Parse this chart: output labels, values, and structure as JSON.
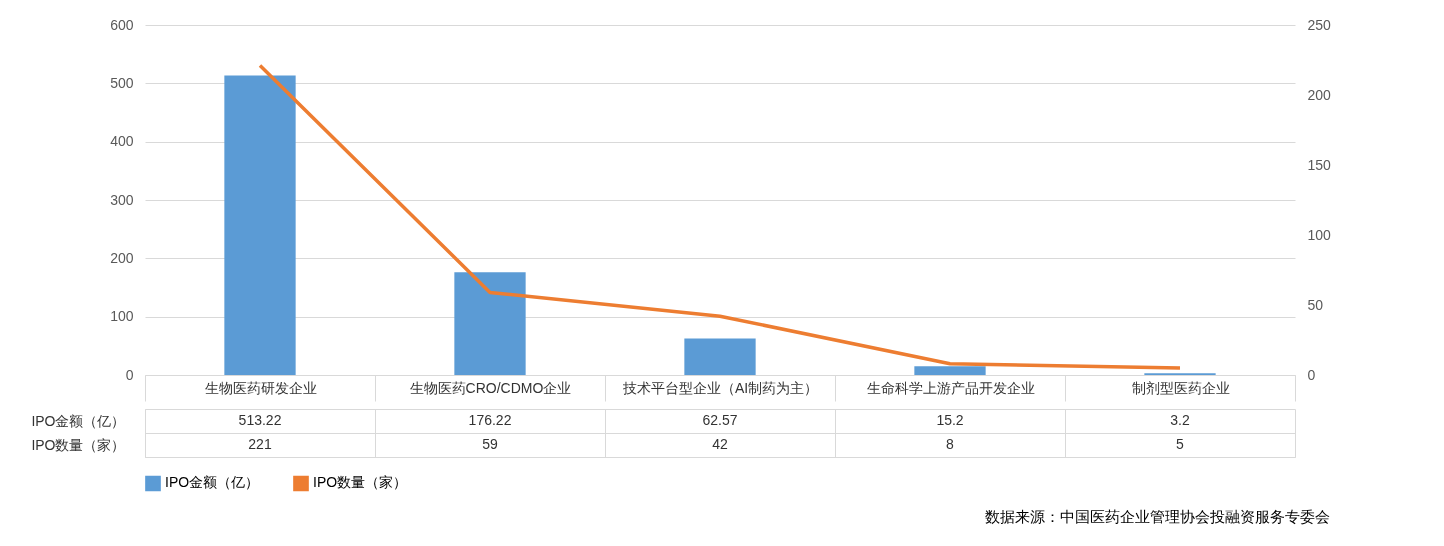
{
  "chart_data": {
    "type": "bar",
    "categories": [
      "生物医药研发企业",
      "生物医药CRO/CDMO企业",
      "技术平台型企业（AI制药为主）",
      "生命科学上游产品开发企业",
      "制剂型医药企业"
    ],
    "series": [
      {
        "name": "IPO金额（亿）",
        "color": "#5b9bd5",
        "values": [
          513.22,
          176.22,
          62.57,
          15.2,
          3.2
        ]
      },
      {
        "name": "IPO数量（家）",
        "type": "line",
        "axis": "y2",
        "color": "#ed7d31",
        "values": [
          221,
          59,
          42,
          8,
          5
        ]
      }
    ],
    "ylim": [
      0,
      600
    ],
    "yticks": [
      0,
      100,
      200,
      300,
      400,
      500,
      600
    ],
    "y2lim": [
      0,
      250
    ],
    "y2ticks": [
      0,
      50,
      100,
      150,
      200,
      250
    ],
    "grid": "y",
    "legend": "bottom",
    "data_labels": true,
    "annotations": [
      "数据来源：中国医药企业管理协会投融资服务专委会"
    ]
  }
}
